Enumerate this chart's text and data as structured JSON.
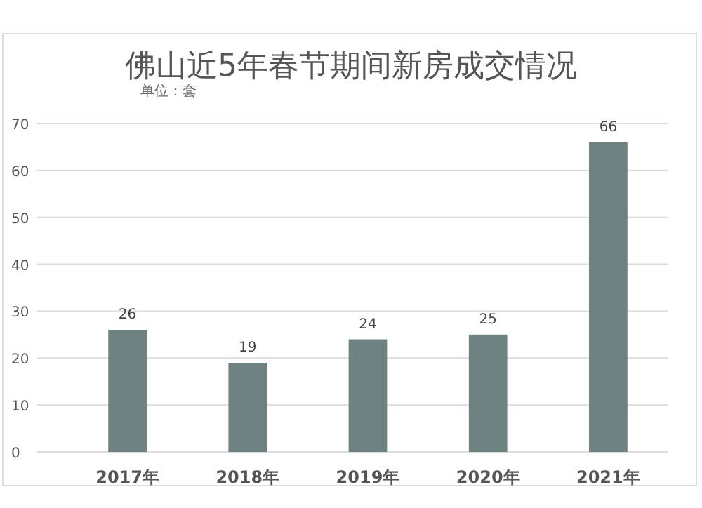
{
  "chart_data": {
    "type": "bar",
    "title": "佛山近5年春节期间新房成交情况",
    "subtitle": "单位：套",
    "categories": [
      "2017年",
      "2018年",
      "2019年",
      "2020年",
      "2021年"
    ],
    "values": [
      26,
      19,
      24,
      25,
      66
    ],
    "color": "#6f8282",
    "ylim": [
      0,
      70
    ],
    "yticks": [
      0,
      10,
      20,
      30,
      40,
      50,
      60,
      70
    ],
    "grid": "y",
    "data_labels": true
  }
}
